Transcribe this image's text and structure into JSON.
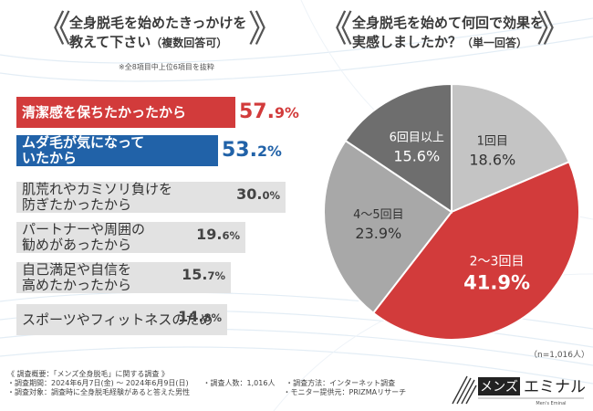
{
  "left_title": {
    "line1": "全身脱毛を始めたきっかけを",
    "line2": "教えて下さい",
    "line2_sub": "（複数回答可）"
  },
  "left_note": "※全8項目中上位6項目を抜粋",
  "right_title": {
    "line1": "全身脱毛を始めて何回で効果を",
    "line2": "実感しましたか？",
    "line2_sub": "（単一回答）"
  },
  "sample_size": "（n=1,016人）",
  "colors": {
    "red": "#d23b3b",
    "blue": "#2162a8",
    "lightgray": "#e2e2e2",
    "pie_light": "#c4c4c4",
    "pie_mid": "#a8a8a8",
    "pie_dark": "#6e6e6e"
  },
  "chart_data": [
    {
      "type": "bar",
      "title": "全身脱毛を始めたきっかけを教えて下さい（複数回答可）",
      "categories": [
        "清潔感を保ちたかったから",
        "ムダ毛が気になっていたから",
        "肌荒れやカミソリ負けを防ぎたかったから",
        "パートナーや周囲の勧めがあったから",
        "自己満足や自信を高めたかったから",
        "スポーツやフィットネスのため"
      ],
      "labels": [
        "清潔感を保ちたかったから",
        "ムダ毛が気になって\nいたから",
        "肌荒れやカミソリ負けを\n防ぎたかったから",
        "パートナーや周囲の\n勧めがあったから",
        "自己満足や自信を\n高めたかったから",
        "スポーツやフィットネスのため"
      ],
      "values": [
        57.9,
        53.2,
        30.0,
        19.6,
        15.7,
        14.8
      ],
      "value_labels": [
        [
          "57.",
          "9%"
        ],
        [
          "53.",
          "2%"
        ],
        [
          "30.",
          "0%"
        ],
        [
          "19.",
          "6%"
        ],
        [
          "15.",
          "7%"
        ],
        [
          "14.",
          "8%"
        ]
      ],
      "unit": "%"
    },
    {
      "type": "pie",
      "title": "全身脱毛を始めて何回で効果を実感しましたか？（単一回答）",
      "slices": [
        {
          "label": "1回目",
          "value": 18.6,
          "text": "18.6%"
        },
        {
          "label": "2〜3回目",
          "value": 41.9,
          "text": "41.9%"
        },
        {
          "label": "4〜5回目",
          "value": 23.9,
          "text": "23.9%"
        },
        {
          "label": "6回目以上",
          "value": 15.6,
          "text": "15.6%"
        }
      ],
      "n": "n=1,016人"
    }
  ],
  "footer": {
    "line1": "《 調査概要：「メンズ全身脱毛」に関する調査 》",
    "period": "・調査期間：2024年6月7日(金) 〜 2024年6月9日(日)",
    "count": "・調査人数：1,016人",
    "method": "・調査方法：インターネット調査",
    "target": "・調査対象：調査時に全身脱毛経験があると答えた男性",
    "provider": "・モニター提供元：PRIZMAリサーチ"
  },
  "logo": {
    "part1": "メンズ",
    "part2": "エミナル",
    "tagline": "Men's Eminal"
  }
}
